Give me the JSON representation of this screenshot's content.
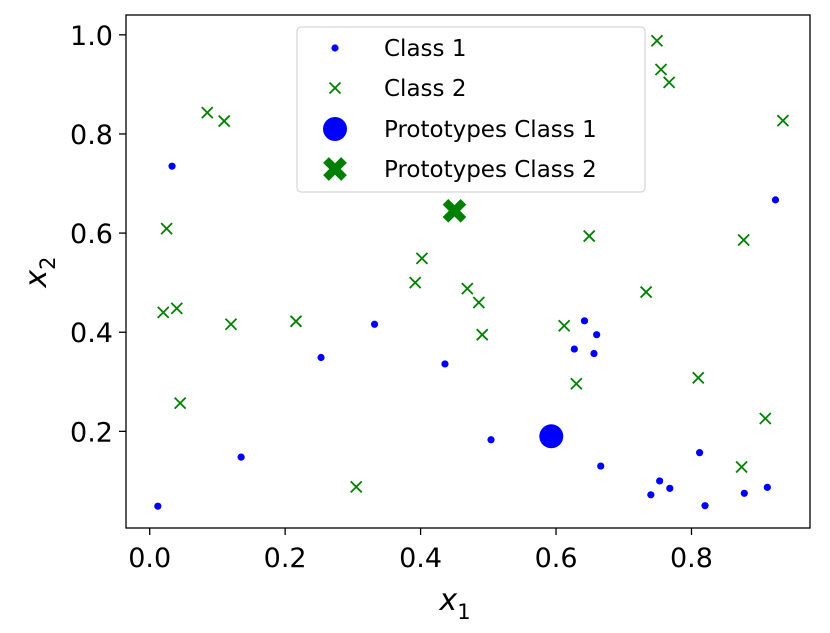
{
  "chart_data": {
    "type": "scatter",
    "title": "",
    "xlabel": {
      "base": "x",
      "sub": "1"
    },
    "ylabel": {
      "base": "x",
      "sub": "2"
    },
    "xlim": [
      -0.035,
      0.975
    ],
    "ylim": [
      0.005,
      1.04
    ],
    "xticks": [
      0.0,
      0.2,
      0.4,
      0.6,
      0.8
    ],
    "xtick_labels": [
      "0.0",
      "0.2",
      "0.4",
      "0.6",
      "0.8"
    ],
    "yticks": [
      0.2,
      0.4,
      0.6,
      0.8,
      1.0
    ],
    "ytick_labels": [
      "0.2",
      "0.4",
      "0.6",
      "0.8",
      "1.0"
    ],
    "grid": false,
    "legend_position": "top-center",
    "series": [
      {
        "name": "Class 1",
        "marker": "dot",
        "color": "#0000ff",
        "points": [
          [
            0.012,
            0.049
          ],
          [
            0.033,
            0.735
          ],
          [
            0.135,
            0.148
          ],
          [
            0.253,
            0.349
          ],
          [
            0.332,
            0.416
          ],
          [
            0.436,
            0.336
          ],
          [
            0.504,
            0.183
          ],
          [
            0.627,
            0.366
          ],
          [
            0.642,
            0.423
          ],
          [
            0.656,
            0.357
          ],
          [
            0.66,
            0.395
          ],
          [
            0.666,
            0.13
          ],
          [
            0.74,
            0.072
          ],
          [
            0.753,
            0.1
          ],
          [
            0.768,
            0.085
          ],
          [
            0.812,
            0.157
          ],
          [
            0.82,
            0.05
          ],
          [
            0.878,
            0.075
          ],
          [
            0.912,
            0.087
          ],
          [
            0.924,
            0.667
          ]
        ]
      },
      {
        "name": "Class 2",
        "marker": "x",
        "color": "#008000",
        "points": [
          [
            0.02,
            0.44
          ],
          [
            0.025,
            0.609
          ],
          [
            0.04,
            0.448
          ],
          [
            0.045,
            0.257
          ],
          [
            0.085,
            0.843
          ],
          [
            0.11,
            0.826
          ],
          [
            0.12,
            0.416
          ],
          [
            0.216,
            0.422
          ],
          [
            0.305,
            0.088
          ],
          [
            0.392,
            0.5
          ],
          [
            0.402,
            0.549
          ],
          [
            0.469,
            0.488
          ],
          [
            0.486,
            0.46
          ],
          [
            0.491,
            0.395
          ],
          [
            0.612,
            0.413
          ],
          [
            0.63,
            0.296
          ],
          [
            0.649,
            0.594
          ],
          [
            0.733,
            0.481
          ],
          [
            0.749,
            0.988
          ],
          [
            0.755,
            0.93
          ],
          [
            0.767,
            0.904
          ],
          [
            0.81,
            0.308
          ],
          [
            0.874,
            0.128
          ],
          [
            0.877,
            0.586
          ],
          [
            0.909,
            0.226
          ],
          [
            0.935,
            0.827
          ]
        ]
      },
      {
        "name": "Prototypes Class 1",
        "marker": "big-dot",
        "color": "#0000ff",
        "points": [
          [
            0.593,
            0.19
          ]
        ]
      },
      {
        "name": "Prototypes Class 2",
        "marker": "big-x",
        "color": "#008000",
        "points": [
          [
            0.45,
            0.645
          ]
        ]
      }
    ]
  }
}
